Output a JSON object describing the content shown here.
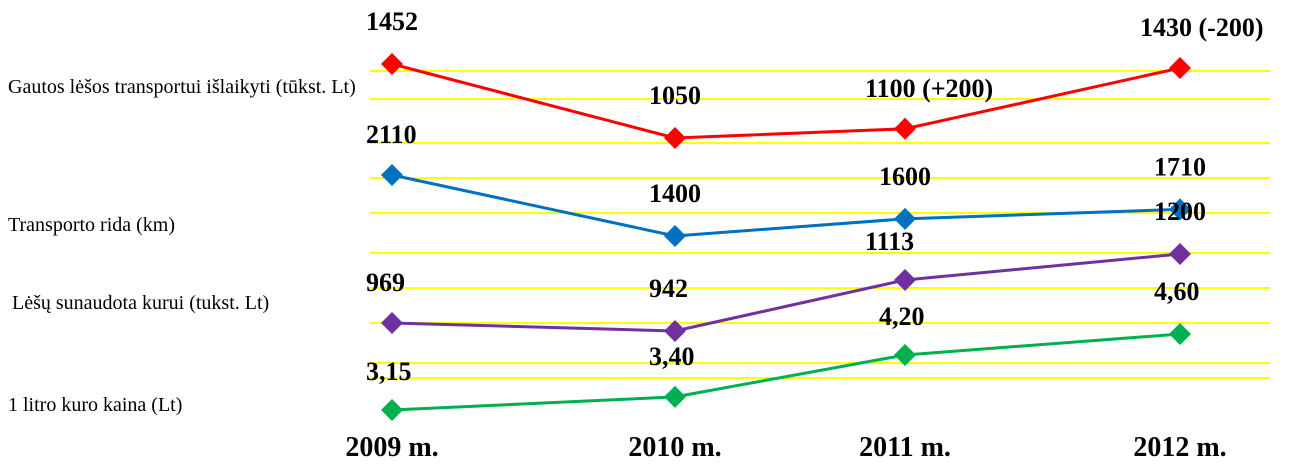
{
  "chart_data": {
    "type": "line",
    "categories": [
      "2009 m.",
      "2010 m.",
      "2011 m.",
      "2012 m."
    ],
    "grid": true,
    "series": [
      {
        "name": "Gautos lėšos transportui išlaikyti (tūkst. Lt)",
        "values": [
          1452,
          1050,
          1100,
          1430
        ],
        "labels": [
          "1452",
          "1050",
          "1100 (+200)",
          "1430 (-200)"
        ],
        "color": "#ff0000"
      },
      {
        "name": "Transporto rida (km)",
        "values": [
          2110,
          1400,
          1600,
          1710
        ],
        "labels": [
          "2110",
          "1400",
          "1600",
          "1710"
        ],
        "color": "#0070c0"
      },
      {
        "name": "Lėšų sunaudota kurui (tukst. Lt)",
        "values": [
          969,
          942,
          1113,
          1200
        ],
        "labels": [
          "969",
          "942",
          "1113",
          "1200"
        ],
        "color": "#7030a0"
      },
      {
        "name": "1 litro kuro kaina (Lt)",
        "values": [
          3.15,
          3.4,
          4.2,
          4.6
        ],
        "labels": [
          "3,15",
          "3,40",
          "4,20",
          "4,60"
        ],
        "color": "#00b050"
      }
    ],
    "grid_color": "#ffff00"
  }
}
